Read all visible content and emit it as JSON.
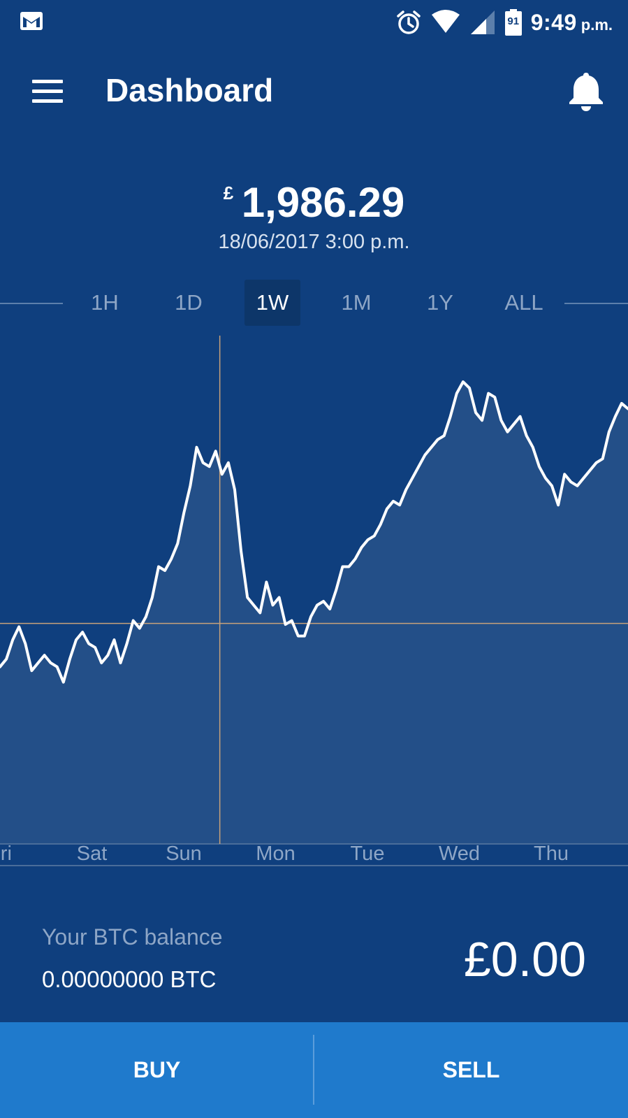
{
  "status_bar": {
    "time": "9:49",
    "ampm": "p.m.",
    "battery_level": "91",
    "icons": [
      "gmail-icon",
      "alarm-icon",
      "wifi-icon",
      "signal-icon",
      "battery-icon"
    ]
  },
  "app_bar": {
    "title": "Dashboard",
    "menu_icon": "hamburger-menu-icon",
    "notification_icon": "bell-icon"
  },
  "price": {
    "currency": "£",
    "value": "1,986.29",
    "timestamp": "18/06/2017 3:00 p.m."
  },
  "range_tabs": {
    "items": [
      "1H",
      "1D",
      "1W",
      "1M",
      "1Y",
      "ALL"
    ],
    "selected": "1W"
  },
  "chart_data": {
    "type": "area",
    "x_tick_labels": [
      "Fri",
      "Sat",
      "Sun",
      "Mon",
      "Tue",
      "Wed",
      "Thu"
    ],
    "cursor_value": 1986.29,
    "cursor_x_fraction": 0.35,
    "series": [
      {
        "values": [
          1930,
          1940,
          1965,
          1982,
          1960,
          1925,
          1935,
          1945,
          1935,
          1930,
          1910,
          1940,
          1965,
          1975,
          1960,
          1955,
          1935,
          1945,
          1965,
          1935,
          1960,
          1990,
          1980,
          1995,
          2020,
          2060,
          2055,
          2070,
          2090,
          2130,
          2165,
          2215,
          2195,
          2190,
          2210,
          2180,
          2195,
          2160,
          2080,
          2020,
          2010,
          2000,
          2040,
          2010,
          2020,
          1985,
          1990,
          1970,
          1970,
          1995,
          2010,
          2015,
          2005,
          2030,
          2060,
          2060,
          2070,
          2085,
          2095,
          2100,
          2115,
          2135,
          2145,
          2140,
          2160,
          2175,
          2190,
          2205,
          2215,
          2225,
          2230,
          2255,
          2285,
          2300,
          2292,
          2260,
          2250,
          2285,
          2280,
          2250,
          2235,
          2245,
          2255,
          2230,
          2215,
          2190,
          2175,
          2165,
          2140,
          2180,
          2170,
          2165,
          2175,
          2185,
          2195,
          2200,
          2235,
          2255,
          2272,
          2265
        ]
      }
    ],
    "grid": false,
    "legend": "none"
  },
  "balance": {
    "label": "Your BTC balance",
    "btc": "0.00000000 BTC",
    "fiat": "£0.00"
  },
  "actions": {
    "buy": "BUY",
    "sell": "SELL"
  },
  "colors": {
    "background": "#0f3f7e",
    "chart_fill": "#234f88",
    "line": "#ffffff",
    "crosshair": "#c8a27a",
    "button_bar": "#1f7acc",
    "muted_text": "#8ea6c6"
  }
}
